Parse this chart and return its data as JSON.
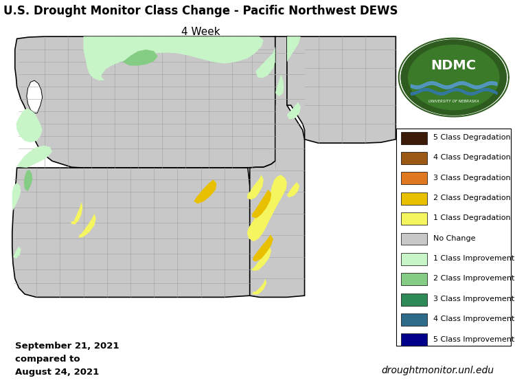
{
  "title_line1": "U.S. Drought Monitor Class Change - Pacific Northwest DEWS",
  "title_line2": "4 Week",
  "date_text": "September 21, 2021\ncompared to\nAugust 24, 2021",
  "website_text": "droughtmonitor.unl.edu",
  "background_color": "#ffffff",
  "map_background": "#c8c8c8",
  "legend_entries": [
    {
      "label": "5 Class Degradation",
      "color": "#3b1a08"
    },
    {
      "label": "4 Class Degradation",
      "color": "#9b5915"
    },
    {
      "label": "3 Class Degradation",
      "color": "#e07820"
    },
    {
      "label": "2 Class Degradation",
      "color": "#e8c000"
    },
    {
      "label": "1 Class Degradation",
      "color": "#f5f560"
    },
    {
      "label": "No Change",
      "color": "#c8c8c8"
    },
    {
      "label": "1 Class Improvement",
      "color": "#c8f5c8"
    },
    {
      "label": "2 Class Improvement",
      "color": "#85cc85"
    },
    {
      "label": "3 Class Improvement",
      "color": "#2e8b57"
    },
    {
      "label": "4 Class Improvement",
      "color": "#2e6b8b"
    },
    {
      "label": "5 Class Improvement",
      "color": "#00008b"
    }
  ],
  "border_color": "#000000",
  "county_border_color": "#a0a0a0",
  "title_fontsize": 12,
  "subtitle_fontsize": 11,
  "legend_fontsize": 8,
  "date_fontsize": 9.5
}
